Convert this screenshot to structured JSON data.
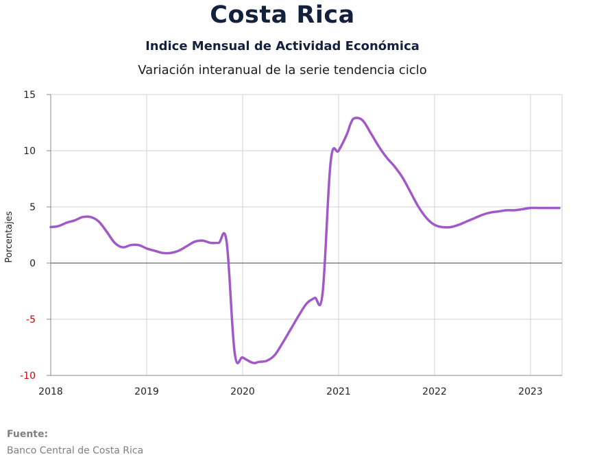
{
  "header": {
    "title": "Costa Rica",
    "subtitle": "Indice Mensual de  Actividad Económica",
    "description": "Variación interanual de la serie tendencia ciclo"
  },
  "footer": {
    "source_label": "Fuente:",
    "source_text": "Banco Central de Costa Rica"
  },
  "colors": {
    "line": "#a259c8",
    "negative_tick": "#cc0000",
    "zero_line": "#808080",
    "grid": "#d0d0d0"
  },
  "chart_data": {
    "type": "line",
    "ylabel": "Porcentajes",
    "ylim": [
      -10,
      15
    ],
    "xlim": [
      2018.0,
      2023.333
    ],
    "yticks": [
      15,
      10,
      5,
      0,
      -5,
      -10
    ],
    "ytick_labels": [
      "15",
      "10",
      "5",
      "0",
      "-5",
      "-10"
    ],
    "xticks": [
      2018,
      2019,
      2020,
      2021,
      2022,
      2023
    ],
    "xtick_labels": [
      "2018",
      "2019",
      "2020",
      "2021",
      "2022",
      "2023"
    ],
    "grid": true,
    "series": [
      {
        "x": [
          2018.0,
          2018.083,
          2018.167,
          2018.25,
          2018.333,
          2018.417,
          2018.5,
          2018.583,
          2018.667,
          2018.75,
          2018.833,
          2018.917,
          2019.0,
          2019.083,
          2019.167,
          2019.25,
          2019.333,
          2019.417,
          2019.5,
          2019.583,
          2019.667,
          2019.75,
          2019.833,
          2019.917,
          2020.0,
          2020.083,
          2020.125,
          2020.167,
          2020.25,
          2020.333,
          2020.417,
          2020.5,
          2020.583,
          2020.667,
          2020.75,
          2020.833,
          2020.917,
          2021.0,
          2021.083,
          2021.125,
          2021.167,
          2021.25,
          2021.333,
          2021.417,
          2021.5,
          2021.583,
          2021.667,
          2021.75,
          2021.833,
          2021.917,
          2022.0,
          2022.083,
          2022.167,
          2022.25,
          2022.333,
          2022.417,
          2022.5,
          2022.583,
          2022.667,
          2022.75,
          2022.833,
          2022.917,
          2023.0,
          2023.083,
          2023.167,
          2023.25,
          2023.3
        ],
        "values": [
          3.2,
          3.3,
          3.6,
          3.8,
          4.1,
          4.1,
          3.7,
          2.8,
          1.8,
          1.4,
          1.6,
          1.6,
          1.3,
          1.1,
          0.9,
          0.9,
          1.1,
          1.5,
          1.9,
          2.0,
          1.8,
          1.8,
          1.9,
          -8.0,
          -8.4,
          -8.8,
          -8.9,
          -8.8,
          -8.7,
          -8.2,
          -7.1,
          -5.9,
          -4.7,
          -3.6,
          -3.1,
          -2.7,
          9.0,
          10.0,
          11.4,
          12.4,
          12.9,
          12.7,
          11.6,
          10.4,
          9.4,
          8.6,
          7.6,
          6.3,
          5.0,
          4.0,
          3.4,
          3.2,
          3.2,
          3.4,
          3.7,
          4.0,
          4.3,
          4.5,
          4.6,
          4.7,
          4.7,
          4.8,
          4.9,
          4.9,
          4.9,
          4.9,
          4.9
        ]
      }
    ]
  }
}
